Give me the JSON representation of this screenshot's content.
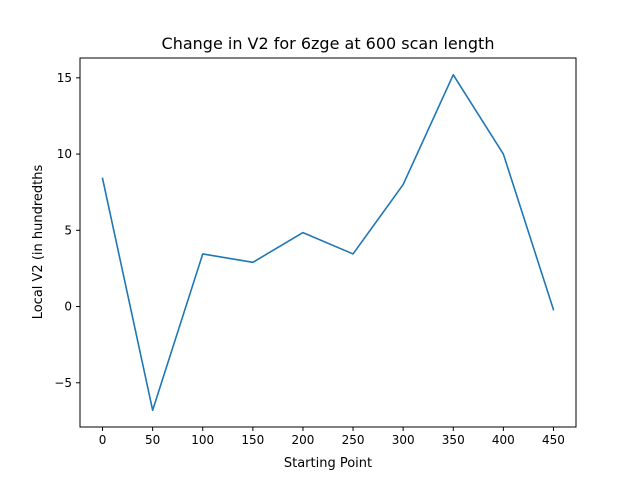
{
  "chart_data": {
    "type": "line",
    "title": "Change in V2 for 6zge at 600 scan length",
    "xlabel": "Starting Point",
    "ylabel": "Local V2 (in hundredths",
    "x": [
      0,
      50,
      100,
      150,
      200,
      250,
      300,
      350,
      400,
      450
    ],
    "series": [
      {
        "values": [
          8.4,
          -6.8,
          3.45,
          2.9,
          4.85,
          3.45,
          8.0,
          15.2,
          10.0,
          -0.2
        ],
        "color": "#1f77b4"
      }
    ],
    "xlim": [
      -22.5,
      472.5
    ],
    "ylim": [
      -7.9,
      16.3
    ],
    "xticks": [
      0,
      50,
      100,
      150,
      200,
      250,
      300,
      350,
      400,
      450
    ],
    "xtick_labels": [
      "0",
      "50",
      "100",
      "150",
      "200",
      "250",
      "300",
      "350",
      "400",
      "450"
    ],
    "yticks": [
      -5,
      0,
      5,
      10,
      15
    ],
    "ytick_labels": [
      "−5",
      "0",
      "5",
      "10",
      "15"
    ],
    "grid": false,
    "legend": "none"
  }
}
